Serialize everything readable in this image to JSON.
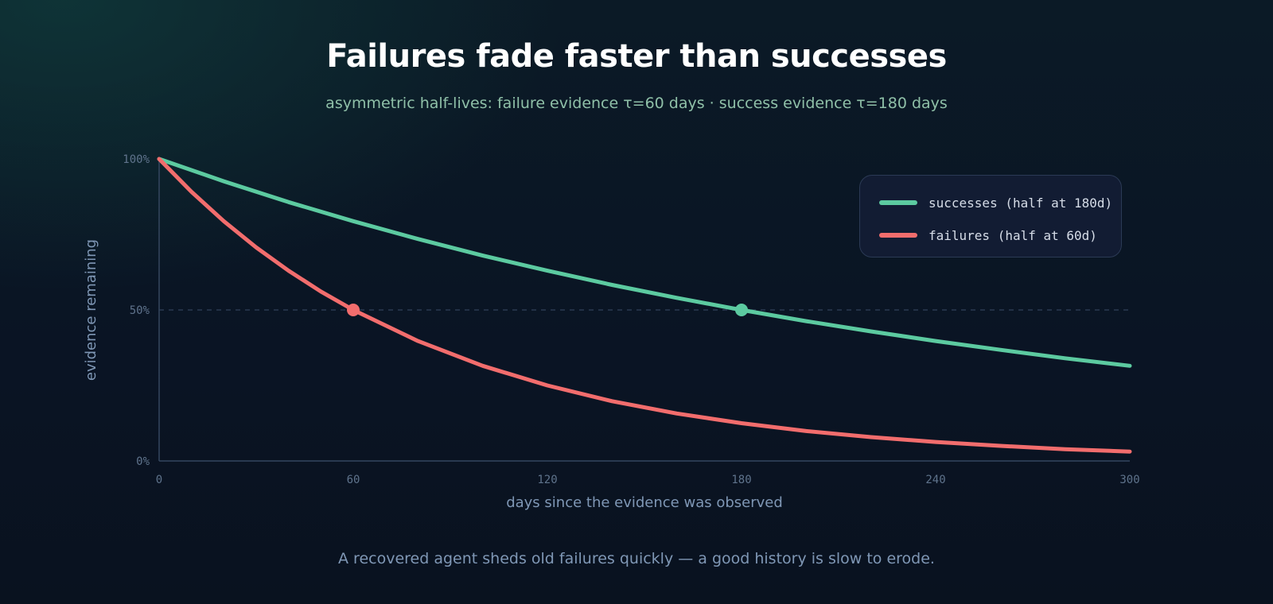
{
  "title": "Failures fade faster than successes",
  "subtitle": "asymmetric half-lives: failure evidence τ=60 days · success evidence τ=180 days",
  "caption": "A recovered agent sheds old failures quickly — a good history is slow to erode.",
  "chart_data": {
    "type": "line",
    "xlabel": "days since the evidence was observed",
    "ylabel": "evidence remaining",
    "xlim": [
      0,
      300
    ],
    "ylim": [
      0,
      1
    ],
    "x_ticks": [
      0,
      60,
      120,
      180,
      240,
      300
    ],
    "x_tick_labels": [
      "0",
      "60",
      "120",
      "180",
      "240",
      "300"
    ],
    "y_ticks": [
      0,
      0.5,
      1
    ],
    "y_tick_labels": [
      "0%",
      "50%",
      "100%"
    ],
    "reference_line": {
      "y": 0.5,
      "style": "dashed"
    },
    "grid": false,
    "legend_position": "top-right",
    "series": [
      {
        "name": "successes (half at 180d)",
        "color": "#5ccaa0",
        "x": [
          0,
          20,
          40,
          60,
          80,
          100,
          120,
          140,
          160,
          180,
          200,
          220,
          240,
          260,
          280,
          300
        ],
        "y": [
          1.0,
          0.926,
          0.857,
          0.794,
          0.735,
          0.68,
          0.63,
          0.583,
          0.54,
          0.5,
          0.463,
          0.429,
          0.397,
          0.368,
          0.34,
          0.315
        ],
        "marker": {
          "x": 180,
          "y": 0.5
        }
      },
      {
        "name": "failures (half at 60d)",
        "color": "#f26d6d",
        "x": [
          0,
          10,
          20,
          30,
          40,
          50,
          60,
          80,
          100,
          120,
          140,
          160,
          180,
          200,
          220,
          240,
          260,
          280,
          300
        ],
        "y": [
          1.0,
          0.891,
          0.794,
          0.707,
          0.63,
          0.561,
          0.5,
          0.397,
          0.315,
          0.25,
          0.198,
          0.157,
          0.125,
          0.099,
          0.079,
          0.063,
          0.05,
          0.039,
          0.031
        ],
        "marker": {
          "x": 60,
          "y": 0.5
        }
      }
    ]
  }
}
